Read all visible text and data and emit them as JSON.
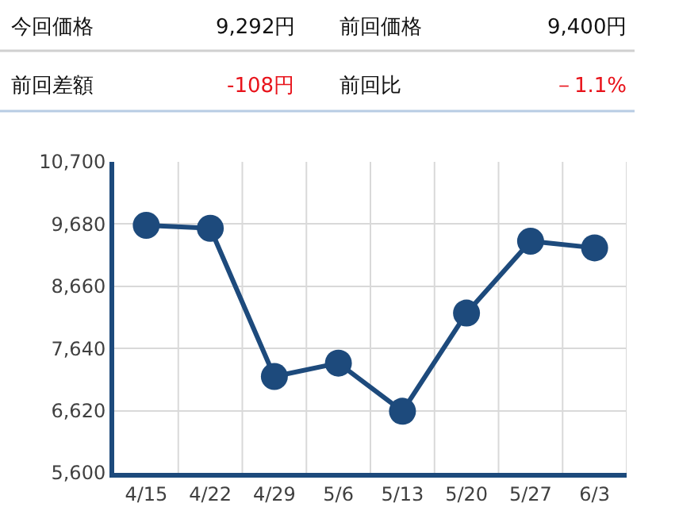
{
  "chart_data": {
    "type": "line",
    "annotations": [
      "今回価格",
      "9,292円",
      "前回価格",
      "9,400円",
      "前回差額",
      "-108円",
      "前回比",
      "－1.1%"
    ],
    "categories": [
      "4/15",
      "4/22",
      "4/29",
      "5/6",
      "5/13",
      "5/20",
      "5/27",
      "6/3"
    ],
    "series": [
      {
        "color": "#1d4a7c",
        "values": [
          9660,
          9610,
          7180,
          7400,
          6610,
          8220,
          9400,
          9290
        ]
      }
    ],
    "ylim": [
      5600,
      10700
    ],
    "yticks": [
      {
        "value": 5600,
        "label": "5,600"
      },
      {
        "value": 6620,
        "label": "6,620"
      },
      {
        "value": 7640,
        "label": "7,640"
      },
      {
        "value": 8660,
        "label": "8,660"
      },
      {
        "value": 9680,
        "label": "9,680"
      },
      {
        "value": 10700,
        "label": "10,700"
      }
    ],
    "grid": true,
    "marker": "circle",
    "line_style": "solid"
  }
}
